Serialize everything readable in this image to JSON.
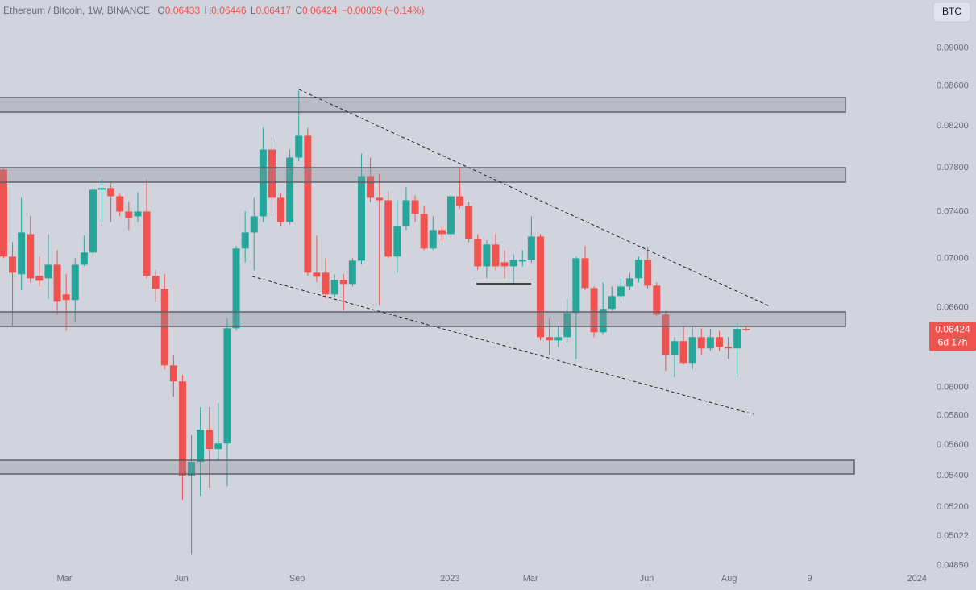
{
  "chart_data": {
    "type": "candlestick",
    "title": "Ethereum / Bitcoin, 1W, BINANCE",
    "ohlc_letters": [
      "O",
      "H",
      "L",
      "C"
    ],
    "change": "−0.00009 (−0.14%)",
    "currency": "BTC",
    "countdown": "6d 17h",
    "up_color": "#26a69a",
    "down_color": "#ef5350",
    "log_scale": true,
    "grid": false,
    "open": [
      0.07782,
      0.07014,
      0.06867,
      0.07205,
      0.06854,
      0.06834,
      0.06946,
      0.06704,
      0.06659,
      0.06946,
      0.07048,
      0.07597,
      0.07612,
      0.07538,
      0.07402,
      0.07359,
      0.07402,
      0.06854,
      0.06749,
      0.06159,
      0.06042,
      0.05399,
      0.05488,
      0.05704,
      0.05573,
      0.0561,
      0.06438,
      0.07082,
      0.07219,
      0.07359,
      0.07971,
      0.07524,
      0.0731,
      0.07895,
      0.08103,
      0.0688,
      0.0688,
      0.06704,
      0.06821,
      0.06788,
      0.0698,
      0.07722,
      0.07524,
      0.07502,
      0.07014,
      0.07275,
      0.07502,
      0.07381,
      0.07082,
      0.0724,
      0.07205,
      0.07538,
      0.07452,
      0.07164,
      0.06933,
      0.07116,
      0.06966,
      0.06933,
      0.06973,
      0.06987,
      0.07184,
      0.0637,
      0.06346,
      0.0637,
      0.06557,
      0.07,
      0.06755,
      0.06407,
      0.06589,
      0.06691,
      0.06768,
      0.06834,
      0.06987,
      0.06775,
      0.06544,
      0.06237,
      0.0634,
      0.06177,
      0.0637,
      0.06285,
      0.0637,
      0.06297,
      0.06285,
      0.06433
    ],
    "high": [
      0.07797,
      0.07136,
      0.07524,
      0.07359,
      0.07014,
      0.07205,
      0.07068,
      0.06867,
      0.07,
      0.07191,
      0.07619,
      0.07692,
      0.0767,
      0.0756,
      0.07488,
      0.07575,
      0.07692,
      0.069,
      0.06867,
      0.06237,
      0.06088,
      0.05665,
      0.05859,
      0.05859,
      0.05887,
      0.06513,
      0.07102,
      0.07402,
      0.07524,
      0.08182,
      0.08087,
      0.0756,
      0.07971,
      0.08551,
      0.08182,
      0.07191,
      0.07,
      0.06867,
      0.06867,
      0.07,
      0.07933,
      0.07895,
      0.07744,
      0.07582,
      0.07502,
      0.07619,
      0.07545,
      0.07452,
      0.07359,
      0.07275,
      0.0756,
      0.07797,
      0.07488,
      0.07205,
      0.0715,
      0.07205,
      0.07068,
      0.07034,
      0.07068,
      0.07359,
      0.07205,
      0.06513,
      0.06451,
      0.06671,
      0.07014,
      0.07102,
      0.06768,
      0.06801,
      0.06768,
      0.06834,
      0.0688,
      0.07014,
      0.07088,
      0.06801,
      0.06576,
      0.0637,
      0.06451,
      0.06451,
      0.06438,
      0.06432,
      0.06419,
      0.0637,
      0.06482,
      0.06446
    ],
    "low": [
      0.07,
      0.06457,
      0.06736,
      0.06801,
      0.06768,
      0.06671,
      0.06544,
      0.06419,
      0.06482,
      0.06933,
      0.07014,
      0.0731,
      0.0731,
      0.07359,
      0.0724,
      0.0731,
      0.06834,
      0.0664,
      0.0613,
      0.05932,
      0.05245,
      0.04916,
      0.0527,
      0.05321,
      0.05493,
      0.05331,
      0.06419,
      0.06966,
      0.069,
      0.0731,
      0.07359,
      0.07275,
      0.07289,
      0.07857,
      0.06854,
      0.06801,
      0.06671,
      0.06684,
      0.06576,
      0.06768,
      0.06946,
      0.07488,
      0.0662,
      0.07,
      0.0688,
      0.0724,
      0.0731,
      0.07068,
      0.07068,
      0.0715,
      0.07171,
      0.07431,
      0.07136,
      0.069,
      0.06834,
      0.069,
      0.06834,
      0.06788,
      0.06933,
      0.0696,
      0.06346,
      0.06237,
      0.06297,
      0.06328,
      0.06207,
      0.06736,
      0.0637,
      0.06389,
      0.06576,
      0.06671,
      0.06736,
      0.06801,
      0.06749,
      0.06532,
      0.06118,
      0.06071,
      0.06165,
      0.0613,
      0.06237,
      0.06267,
      0.06267,
      0.06207,
      0.06071,
      0.06417
    ],
    "close": [
      0.07014,
      0.0688,
      0.07219,
      0.06834,
      0.06814,
      0.06946,
      0.06646,
      0.06659,
      0.06946,
      0.07048,
      0.07597,
      0.07612,
      0.07538,
      0.07402,
      0.07345,
      0.07402,
      0.06854,
      0.06749,
      0.06159,
      0.06042,
      0.05399,
      0.05488,
      0.05704,
      0.05573,
      0.0561,
      0.06438,
      0.07082,
      0.07219,
      0.07359,
      0.07971,
      0.07524,
      0.0731,
      0.07895,
      0.08103,
      0.0688,
      0.06847,
      0.06704,
      0.06821,
      0.06788,
      0.0698,
      0.07722,
      0.07524,
      0.07502,
      0.07014,
      0.07275,
      0.07502,
      0.07381,
      0.07082,
      0.0724,
      0.07205,
      0.07538,
      0.07452,
      0.07164,
      0.06933,
      0.07116,
      0.06933,
      0.06933,
      0.06987,
      0.06987,
      0.07184,
      0.0637,
      0.06346,
      0.0637,
      0.06557,
      0.07,
      0.06755,
      0.06407,
      0.06589,
      0.06691,
      0.06768,
      0.06834,
      0.06987,
      0.06775,
      0.06544,
      0.06237,
      0.0634,
      0.06177,
      0.0637,
      0.06285,
      0.0637,
      0.06297,
      0.06285,
      0.06433,
      0.06424
    ],
    "xlim": [
      -0.4,
      103.2
    ],
    "xticks": [
      {
        "value": 6.8,
        "label": "Mar"
      },
      {
        "value": 19.86,
        "label": "Jun"
      },
      {
        "value": 32.8,
        "label": "Sep"
      },
      {
        "value": 49.9,
        "label": "2023"
      },
      {
        "value": 58.9,
        "label": "Mar"
      },
      {
        "value": 71.9,
        "label": "Jun"
      },
      {
        "value": 81.1,
        "label": "Aug"
      },
      {
        "value": 90.1,
        "label": "9"
      },
      {
        "value": 102.1,
        "label": "2024"
      }
    ],
    "ylim": [
      0.0481,
      0.0953
    ],
    "yticks": [
      {
        "value": 0.09,
        "label": "0.09000"
      },
      {
        "value": 0.086,
        "label": "0.08600"
      },
      {
        "value": 0.082,
        "label": "0.08200"
      },
      {
        "value": 0.078,
        "label": "0.07800"
      },
      {
        "value": 0.074,
        "label": "0.07400"
      },
      {
        "value": 0.07,
        "label": "0.07000"
      },
      {
        "value": 0.066,
        "label": "0.06600"
      },
      {
        "value": 0.06,
        "label": "0.06000"
      },
      {
        "value": 0.058,
        "label": "0.05800"
      },
      {
        "value": 0.056,
        "label": "0.05600"
      },
      {
        "value": 0.054,
        "label": "0.05400"
      },
      {
        "value": 0.052,
        "label": "0.05200"
      },
      {
        "value": 0.05022,
        "label": "0.05022"
      },
      {
        "value": 0.0485,
        "label": "0.04850"
      }
    ]
  }
}
